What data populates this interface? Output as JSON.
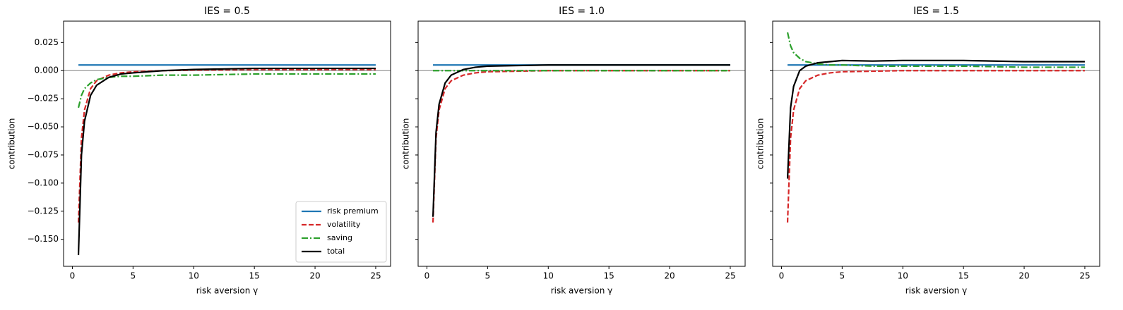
{
  "chart_data": [
    {
      "type": "line",
      "title": "IES = 0.5",
      "xlabel": "risk aversion γ",
      "ylabel": "contribution",
      "x": [
        0.5,
        0.75,
        1,
        1.5,
        2,
        3,
        4,
        5,
        7.5,
        10,
        15,
        20,
        25
      ],
      "series": [
        {
          "name": "risk premium",
          "color": "#1f77b4",
          "linestyle": "solid",
          "values": [
            0.005,
            0.005,
            0.005,
            0.005,
            0.005,
            0.005,
            0.005,
            0.005,
            0.005,
            0.005,
            0.005,
            0.005,
            0.005
          ]
        },
        {
          "name": "volatility",
          "color": "#d62728",
          "linestyle": "dashed",
          "values": [
            -0.135,
            -0.06,
            -0.035,
            -0.016,
            -0.009,
            -0.004,
            -0.002,
            -0.001,
            0,
            0.0005,
            0.001,
            0.001,
            0.001
          ]
        },
        {
          "name": "saving",
          "color": "#2ca02c",
          "linestyle": "dashdot",
          "values": [
            -0.033,
            -0.022,
            -0.016,
            -0.011,
            -0.008,
            -0.006,
            -0.005,
            -0.005,
            -0.004,
            -0.004,
            -0.003,
            -0.003,
            -0.003
          ]
        },
        {
          "name": "total",
          "color": "#000000",
          "linestyle": "solid",
          "values": [
            -0.164,
            -0.075,
            -0.045,
            -0.022,
            -0.013,
            -0.006,
            -0.003,
            -0.002,
            0,
            0.001,
            0.002,
            0.002,
            0.002
          ]
        }
      ],
      "hline": 0,
      "xlim": [
        -0.725,
        26.225
      ],
      "ylim": [
        -0.174,
        0.044
      ],
      "xticks": [
        0,
        5,
        10,
        15,
        20,
        25
      ],
      "yticks": [
        {
          "value": -0.15,
          "label": "−0.150"
        },
        {
          "value": -0.125,
          "label": "−0.125"
        },
        {
          "value": -0.1,
          "label": "−0.100"
        },
        {
          "value": -0.075,
          "label": "−0.075"
        },
        {
          "value": -0.05,
          "label": "−0.050"
        },
        {
          "value": -0.025,
          "label": "−0.025"
        },
        {
          "value": 0,
          "label": "0.000"
        },
        {
          "value": 0.025,
          "label": "0.025"
        }
      ],
      "legend": "lower right"
    },
    {
      "type": "line",
      "title": "IES = 1.0",
      "xlabel": "risk aversion γ",
      "ylabel": "contribution",
      "x": [
        0.5,
        0.75,
        1,
        1.5,
        2,
        3,
        4,
        5,
        7.5,
        10,
        15,
        20,
        25
      ],
      "series": [
        {
          "name": "risk premium",
          "color": "#1f77b4",
          "linestyle": "solid",
          "values": [
            0.005,
            0.005,
            0.005,
            0.005,
            0.005,
            0.005,
            0.005,
            0.005,
            0.005,
            0.005,
            0.005,
            0.005,
            0.005
          ]
        },
        {
          "name": "volatility",
          "color": "#d62728",
          "linestyle": "dashed",
          "values": [
            -0.135,
            -0.06,
            -0.035,
            -0.016,
            -0.009,
            -0.004,
            -0.002,
            -0.001,
            -0.0005,
            0,
            0,
            0,
            0
          ]
        },
        {
          "name": "saving",
          "color": "#2ca02c",
          "linestyle": "dashdot",
          "values": [
            0,
            0,
            0,
            0,
            0,
            0,
            0,
            0,
            0,
            0,
            0,
            0,
            0
          ]
        },
        {
          "name": "total",
          "color": "#000000",
          "linestyle": "solid",
          "values": [
            -0.13,
            -0.055,
            -0.03,
            -0.011,
            -0.004,
            0.001,
            0.003,
            0.004,
            0.0045,
            0.005,
            0.005,
            0.005,
            0.005
          ]
        }
      ],
      "hline": 0,
      "xlim": [
        -0.725,
        26.225
      ],
      "ylim": [
        -0.174,
        0.044
      ],
      "xticks": [
        0,
        5,
        10,
        15,
        20,
        25
      ],
      "yticks": [
        -0.15,
        -0.125,
        -0.1,
        -0.075,
        -0.05,
        -0.025,
        0,
        0.025
      ],
      "ytick_labels": false
    },
    {
      "type": "line",
      "title": "IES = 1.5",
      "xlabel": "risk aversion γ",
      "ylabel": "contribution",
      "x": [
        0.5,
        0.75,
        1,
        1.5,
        2,
        3,
        4,
        5,
        7.5,
        10,
        15,
        20,
        25
      ],
      "series": [
        {
          "name": "risk premium",
          "color": "#1f77b4",
          "linestyle": "solid",
          "values": [
            0.005,
            0.005,
            0.005,
            0.005,
            0.005,
            0.005,
            0.005,
            0.005,
            0.005,
            0.005,
            0.005,
            0.005,
            0.005
          ]
        },
        {
          "name": "volatility",
          "color": "#d62728",
          "linestyle": "dashed",
          "values": [
            -0.135,
            -0.06,
            -0.035,
            -0.016,
            -0.009,
            -0.004,
            -0.002,
            -0.001,
            -0.0005,
            0,
            0,
            0,
            0
          ]
        },
        {
          "name": "saving",
          "color": "#2ca02c",
          "linestyle": "dashdot",
          "values": [
            0.034,
            0.022,
            0.016,
            0.011,
            0.008,
            0.006,
            0.005,
            0.005,
            0.004,
            0.004,
            0.004,
            0.003,
            0.003
          ]
        },
        {
          "name": "total",
          "color": "#000000",
          "linestyle": "solid",
          "values": [
            -0.096,
            -0.033,
            -0.014,
            0,
            0.004,
            0.007,
            0.008,
            0.009,
            0.0085,
            0.009,
            0.009,
            0.008,
            0.008
          ]
        }
      ],
      "hline": 0,
      "xlim": [
        -0.725,
        26.225
      ],
      "ylim": [
        -0.174,
        0.044
      ],
      "xticks": [
        0,
        5,
        10,
        15,
        20,
        25
      ],
      "yticks": [
        -0.15,
        -0.125,
        -0.1,
        -0.075,
        -0.05,
        -0.025,
        0,
        0.025
      ],
      "ytick_labels": false
    }
  ]
}
